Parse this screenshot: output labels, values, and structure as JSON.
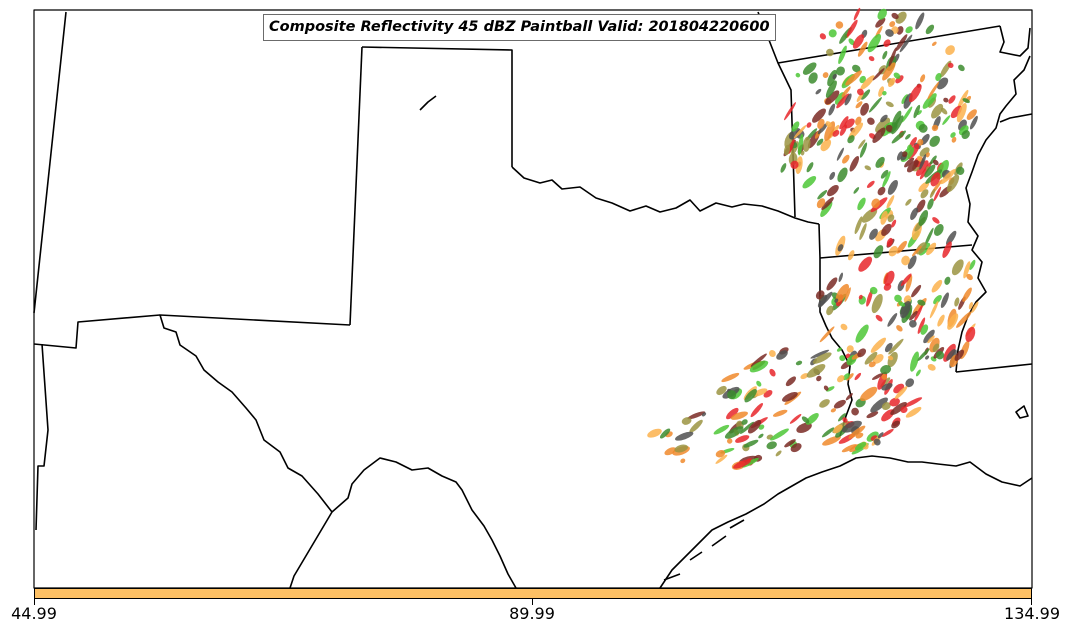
{
  "title": "Composite Reflectivity 45 dBZ Paintball Valid: 201804220600",
  "colorbar": {
    "color": "#fdc064",
    "ticks": [
      "44.99",
      "89.99",
      "134.99"
    ]
  },
  "palette": {
    "green": "#4cc736",
    "darkgreen": "#3c8c2e",
    "orange": "#f08a2c",
    "lightorange": "#fbb14c",
    "red": "#e8262a",
    "maroon": "#7a2a24",
    "olive": "#9b9442",
    "gray": "#505050"
  }
}
